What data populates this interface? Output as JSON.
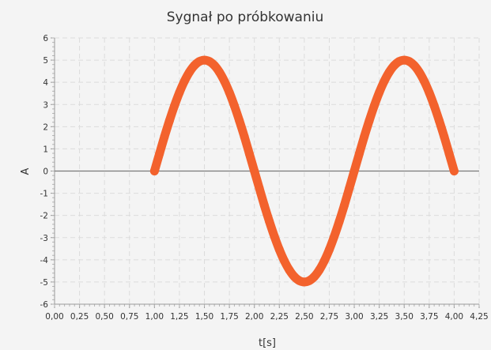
{
  "chart_data": {
    "type": "scatter",
    "title": "Sygnał po próbkowaniu",
    "xlabel": "t[s]",
    "ylabel": "A",
    "xlim": [
      0,
      4.25
    ],
    "ylim": [
      -6,
      6
    ],
    "x_ticks": [
      "0,00",
      "0,25",
      "0,50",
      "0,75",
      "1,00",
      "1,25",
      "1,50",
      "1,75",
      "2,00",
      "2,25",
      "2,50",
      "2,75",
      "3,00",
      "3,25",
      "3,50",
      "3,75",
      "4,00",
      "4,25"
    ],
    "y_ticks": [
      "-6",
      "-5",
      "-4",
      "-3",
      "-2",
      "-1",
      "0",
      "1",
      "2",
      "3",
      "4",
      "5",
      "6"
    ],
    "grid": true,
    "series": [
      {
        "color": "#f3622d",
        "x": [
          1.0,
          1.05,
          1.1,
          1.15,
          1.2,
          1.25,
          1.3,
          1.35,
          1.4,
          1.45,
          1.5,
          1.55,
          1.6,
          1.65,
          1.7,
          1.75,
          1.8,
          1.85,
          1.9,
          1.95,
          2.0,
          2.05,
          2.1,
          2.15,
          2.2,
          2.25,
          2.3,
          2.35,
          2.4,
          2.45,
          2.5,
          2.55,
          2.6,
          2.65,
          2.7,
          2.75,
          2.8,
          2.85,
          2.9,
          2.95,
          3.0,
          3.05,
          3.1,
          3.15,
          3.2,
          3.25,
          3.3,
          3.35,
          3.4,
          3.45,
          3.5,
          3.55,
          3.6,
          3.65,
          3.7,
          3.75,
          3.8,
          3.85,
          3.9,
          3.95,
          4.0
        ],
        "y": [
          0.0,
          0.78,
          1.55,
          2.27,
          2.94,
          3.54,
          4.05,
          4.46,
          4.76,
          4.94,
          5.0,
          4.94,
          4.76,
          4.46,
          4.05,
          3.54,
          2.94,
          2.27,
          1.55,
          0.78,
          0.0,
          -0.78,
          -1.55,
          -2.27,
          -2.94,
          -3.54,
          -4.05,
          -4.46,
          -4.76,
          -4.94,
          -5.0,
          -4.94,
          -4.76,
          -4.46,
          -4.05,
          -3.54,
          -2.94,
          -2.27,
          -1.55,
          -0.78,
          0.0,
          0.78,
          1.55,
          2.27,
          2.94,
          3.54,
          4.05,
          4.46,
          4.76,
          4.94,
          5.0,
          4.94,
          4.76,
          4.46,
          4.05,
          3.54,
          2.94,
          2.27,
          1.55,
          0.78,
          0.0
        ]
      }
    ]
  }
}
